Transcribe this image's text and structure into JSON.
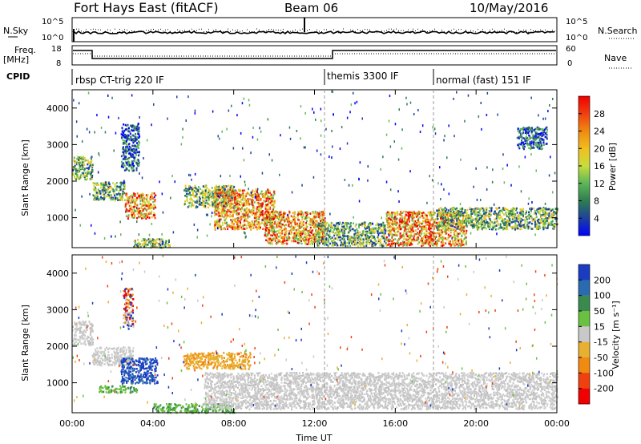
{
  "header": {
    "title": "Fort Hays East (fitACF)",
    "beam": "Beam 06",
    "date": "10/May/2016"
  },
  "panels": {
    "nsky": {
      "label": "N.Sky",
      "ticks_left": [
        "10^5",
        "10^0"
      ],
      "ticks_right": [
        "10^5",
        "10^0"
      ],
      "right_label": "N.Search"
    },
    "freq": {
      "label_top": "Freq.",
      "label_unit": "[MHz]",
      "ticks_left": [
        "18",
        "8"
      ],
      "ticks_right": [
        "60",
        "0"
      ],
      "right_label": "Nave"
    },
    "cpid": {
      "label": "CPID",
      "segments": [
        {
          "name": "rbsp CT-trig 220 IF",
          "start_hour": 0
        },
        {
          "name": "themis 3300 IF",
          "start_hour": 12.6
        },
        {
          "name": "normal (fast) 151 IF",
          "start_hour": 18.0
        }
      ]
    }
  },
  "chart_data": [
    {
      "type": "heatmap",
      "quantity": "Power",
      "ylabel": "Slant Range [km]",
      "ylim": [
        180,
        4500
      ],
      "yticks": [
        "1000",
        "2000",
        "3000",
        "4000"
      ],
      "xlim_hours": [
        0,
        24
      ],
      "colorbar": {
        "label": "Power [dB]",
        "ticks": [
          "4",
          "8",
          "12",
          "16",
          "20",
          "24",
          "28"
        ],
        "colors": [
          "#0000ff",
          "#1c3fa0",
          "#2e7d50",
          "#5fb85a",
          "#c8dc3c",
          "#f0c020",
          "#f08a10",
          "#f03c10",
          "#f00000"
        ]
      },
      "regions": [
        {
          "t": [
            0.0,
            1.0
          ],
          "r": [
            2050,
            2700
          ],
          "level": "mid"
        },
        {
          "t": [
            1.0,
            2.6
          ],
          "r": [
            1500,
            2000
          ],
          "level": "mid"
        },
        {
          "t": [
            2.6,
            4.1
          ],
          "r": [
            1000,
            1700
          ],
          "level": "high"
        },
        {
          "t": [
            2.4,
            3.3
          ],
          "r": [
            2300,
            3600
          ],
          "level": "low"
        },
        {
          "t": [
            3.0,
            4.8
          ],
          "r": [
            200,
            450
          ],
          "level": "mid"
        },
        {
          "t": [
            5.5,
            8.0
          ],
          "r": [
            1300,
            1900
          ],
          "level": "mid"
        },
        {
          "t": [
            7.0,
            10.0
          ],
          "r": [
            700,
            1800
          ],
          "level": "high"
        },
        {
          "t": [
            9.5,
            12.5
          ],
          "r": [
            300,
            1200
          ],
          "level": "high"
        },
        {
          "t": [
            12.0,
            15.5
          ],
          "r": [
            250,
            900
          ],
          "level": "mid"
        },
        {
          "t": [
            15.5,
            19.5
          ],
          "r": [
            250,
            1200
          ],
          "level": "high"
        },
        {
          "t": [
            18.0,
            24.0
          ],
          "r": [
            700,
            1300
          ],
          "level": "mid"
        },
        {
          "t": [
            22.0,
            23.5
          ],
          "r": [
            2900,
            3500
          ],
          "level": "low"
        }
      ]
    },
    {
      "type": "heatmap",
      "quantity": "Velocity",
      "ylabel": "Slant Range [km]",
      "ylim": [
        180,
        4500
      ],
      "yticks": [
        "1000",
        "2000",
        "3000",
        "4000"
      ],
      "xlim_hours": [
        0,
        24
      ],
      "xticks": [
        "00:00",
        "04:00",
        "08:00",
        "12:00",
        "16:00",
        "20:00",
        "00:00"
      ],
      "xlabel": "Time UT",
      "colorbar": {
        "label": "Velocity [m s⁻¹]",
        "ticks": [
          "200",
          "100",
          "50",
          "15",
          "-15",
          "-50",
          "-100",
          "-200"
        ],
        "colors": [
          "#1a3cc0",
          "#2a6ab0",
          "#3a8a50",
          "#6ac040",
          "#c8c8c8",
          "#e8b030",
          "#f08a10",
          "#f04010",
          "#f00000"
        ]
      },
      "regions": [
        {
          "t": [
            0.0,
            1.0
          ],
          "r": [
            2050,
            2700
          ],
          "level": "gray"
        },
        {
          "t": [
            1.0,
            3.0
          ],
          "r": [
            1500,
            2000
          ],
          "level": "gray"
        },
        {
          "t": [
            2.4,
            4.2
          ],
          "r": [
            1000,
            1700
          ],
          "level": "blue"
        },
        {
          "t": [
            1.3,
            3.2
          ],
          "r": [
            750,
            950
          ],
          "level": "green"
        },
        {
          "t": [
            5.5,
            8.8
          ],
          "r": [
            1400,
            1850
          ],
          "level": "orange"
        },
        {
          "t": [
            4.0,
            8.0
          ],
          "r": [
            200,
            450
          ],
          "level": "green"
        },
        {
          "t": [
            6.5,
            24.0
          ],
          "r": [
            300,
            1300
          ],
          "level": "gray"
        },
        {
          "t": [
            2.5,
            3.0
          ],
          "r": [
            2500,
            3600
          ],
          "level": "mixed"
        }
      ]
    }
  ]
}
